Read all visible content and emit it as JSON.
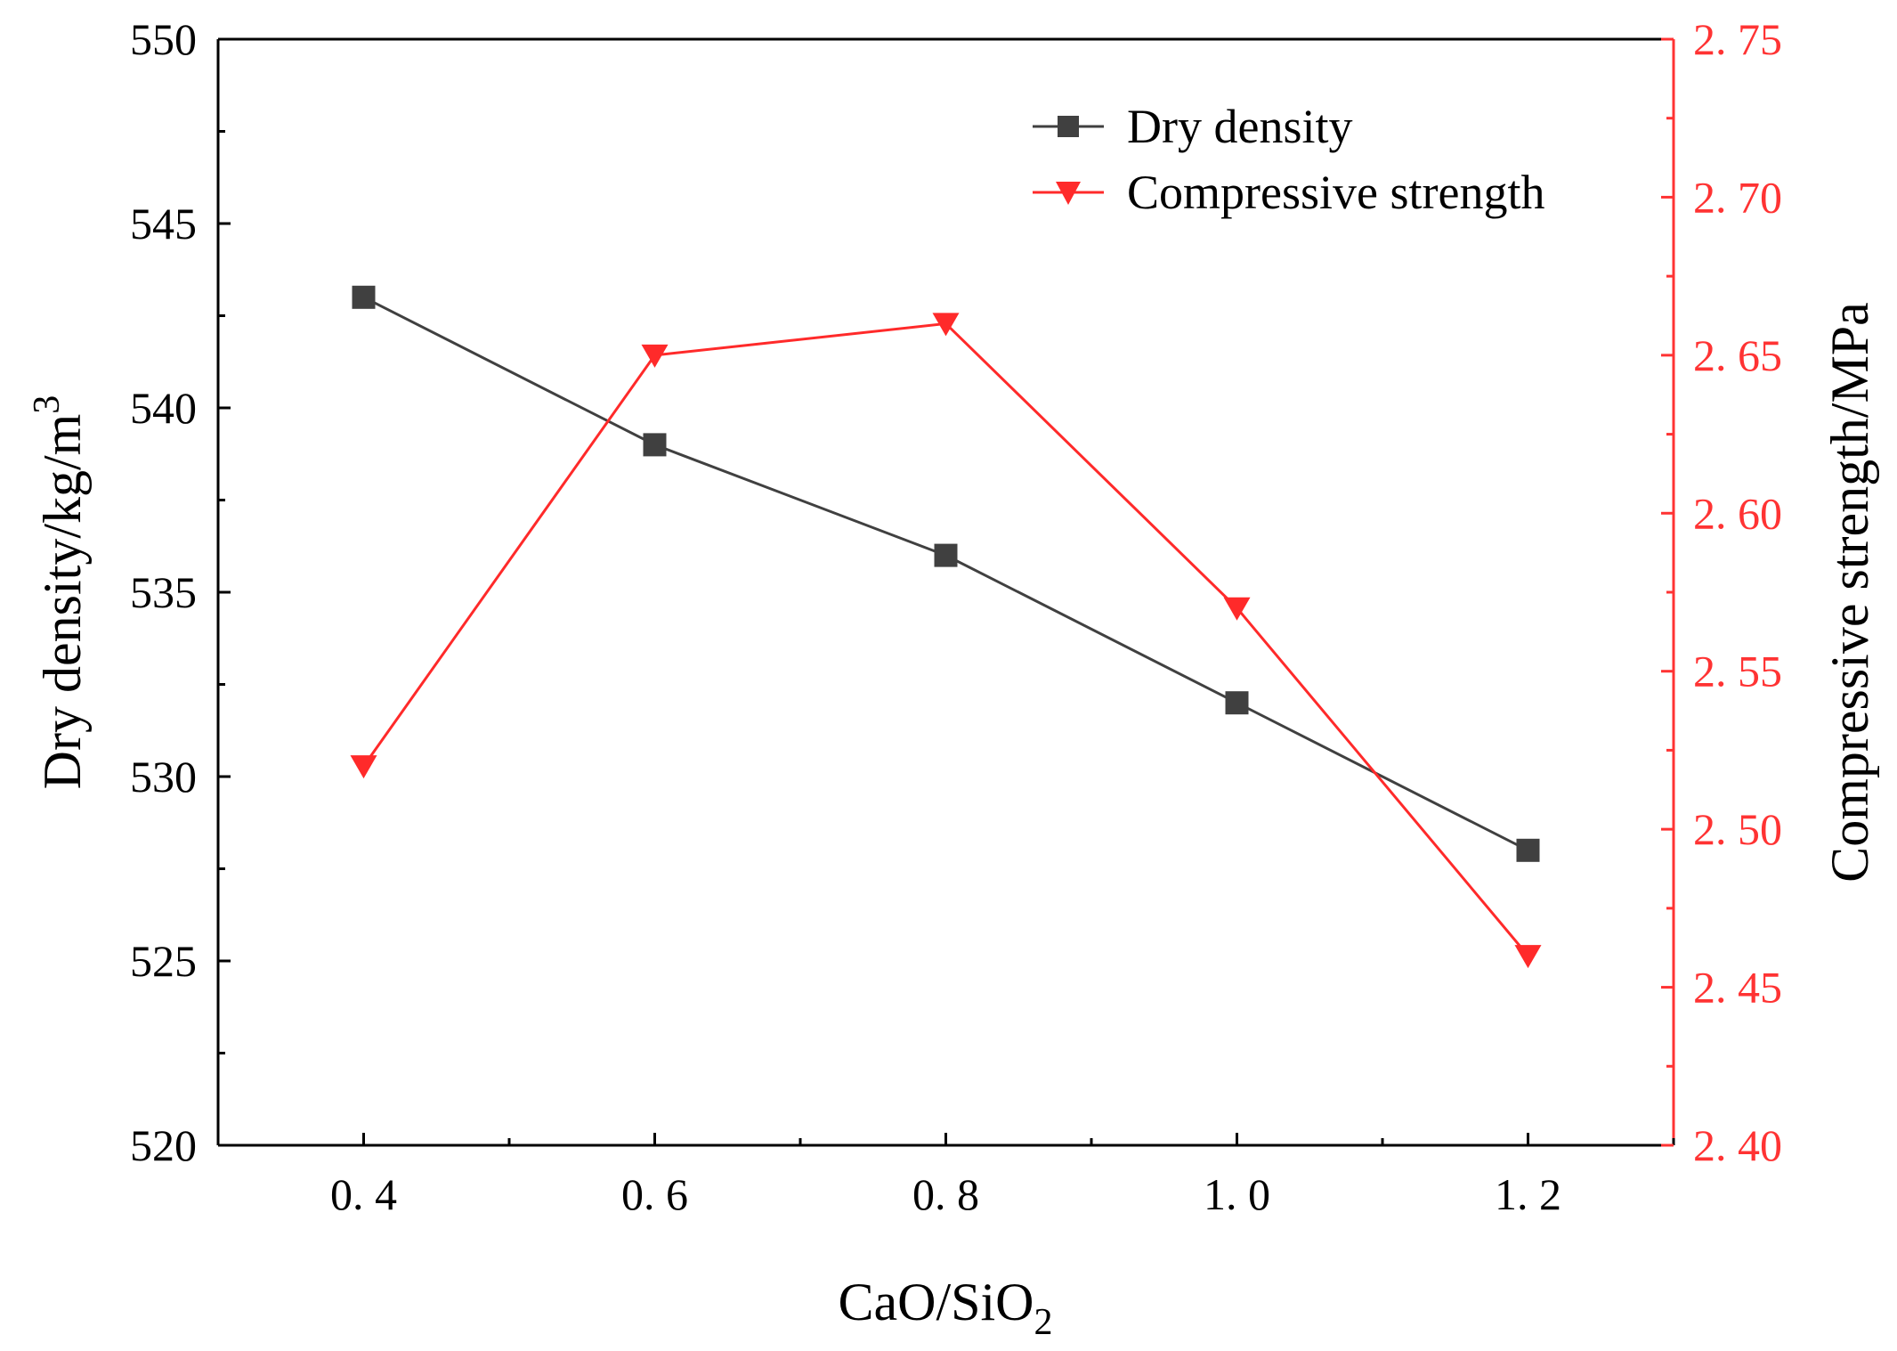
{
  "chart_data": {
    "type": "line",
    "title": "",
    "xlabel": "CaO/SiO",
    "xlabel_subscript": "2",
    "x": [
      0.4,
      0.6,
      0.8,
      1.0,
      1.2
    ],
    "x_tick_labels": [
      "0. 4",
      "0. 6",
      "0. 8",
      "1. 0",
      "1. 2"
    ],
    "xlim": [
      0.3,
      1.3
    ],
    "y_left": {
      "label": "Dry density/kg/m",
      "label_superscript": "3",
      "lim": [
        520,
        550
      ],
      "ticks": [
        520,
        525,
        530,
        535,
        540,
        545,
        550
      ],
      "tick_labels": [
        "520",
        "525",
        "530",
        "535",
        "540",
        "545",
        "550"
      ]
    },
    "y_right": {
      "label": "Compressive strength/MPa",
      "lim": [
        2.4,
        2.75
      ],
      "ticks": [
        2.4,
        2.45,
        2.5,
        2.55,
        2.6,
        2.65,
        2.7,
        2.75
      ],
      "tick_labels": [
        "2. 40",
        "2. 45",
        "2. 50",
        "2. 55",
        "2. 60",
        "2. 65",
        "2. 70",
        "2. 75"
      ]
    },
    "series": [
      {
        "name": "Dry density",
        "axis": "left",
        "marker": "square",
        "color": "#404040",
        "values": [
          543,
          539,
          536,
          532,
          528
        ]
      },
      {
        "name": "Compressive strength",
        "axis": "right",
        "marker": "triangle-down",
        "color": "#ff2a2a",
        "values": [
          2.52,
          2.65,
          2.66,
          2.57,
          2.46
        ]
      }
    ],
    "legend_position": "top-right",
    "grid": false
  },
  "colors": {
    "left_axis": "#000000",
    "right_axis": "#ff3333"
  }
}
